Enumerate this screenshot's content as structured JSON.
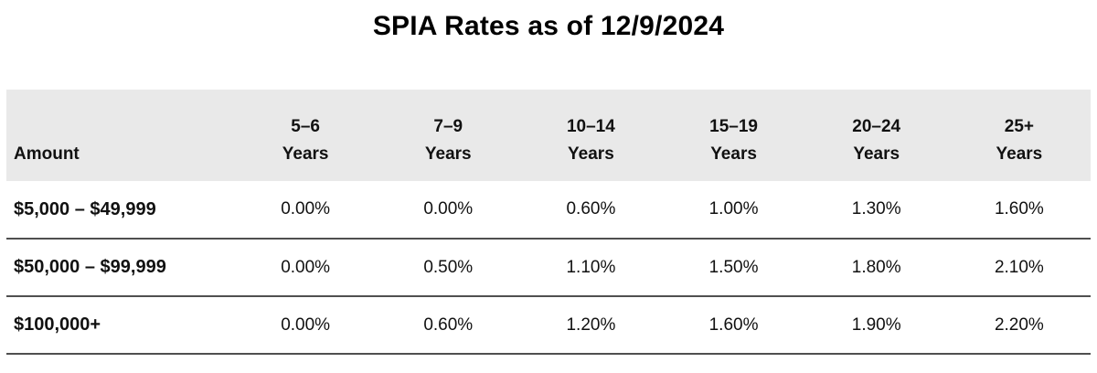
{
  "title": "SPIA Rates as of 12/9/2024",
  "colors": {
    "header_bg": "#e9e9e9",
    "row_rule": "#4f4f4f",
    "text": "#111111",
    "title_text": "#000000"
  },
  "table": {
    "amount_header": "Amount",
    "columns": [
      {
        "range": "5–6",
        "suffix": "Years"
      },
      {
        "range": "7–9",
        "suffix": "Years"
      },
      {
        "range": "10–14",
        "suffix": "Years"
      },
      {
        "range": "15–19",
        "suffix": "Years"
      },
      {
        "range": "20–24",
        "suffix": "Years"
      },
      {
        "range": "25+",
        "suffix": "Years"
      }
    ],
    "rows": [
      {
        "amount": "$5,000 – $49,999",
        "rates": [
          "0.00%",
          "0.00%",
          "0.60%",
          "1.00%",
          "1.30%",
          "1.60%"
        ]
      },
      {
        "amount": "$50,000 – $99,999",
        "rates": [
          "0.00%",
          "0.50%",
          "1.10%",
          "1.50%",
          "1.80%",
          "2.10%"
        ]
      },
      {
        "amount": "$100,000+",
        "rates": [
          "0.00%",
          "0.60%",
          "1.20%",
          "1.60%",
          "1.90%",
          "2.20%"
        ]
      }
    ]
  },
  "chart_data": {
    "type": "table",
    "title": "SPIA Rates as of 12/9/2024",
    "columns": [
      "Amount",
      "5–6 Years",
      "7–9 Years",
      "10–14 Years",
      "15–19 Years",
      "20–24 Years",
      "25+ Years"
    ],
    "rows": [
      [
        "$5,000 – $49,999",
        "0.00%",
        "0.00%",
        "0.60%",
        "1.00%",
        "1.30%",
        "1.60%"
      ],
      [
        "$50,000 – $99,999",
        "0.00%",
        "0.50%",
        "1.10%",
        "1.50%",
        "1.80%",
        "2.10%"
      ],
      [
        "$100,000+",
        "0.00%",
        "0.60%",
        "1.20%",
        "1.60%",
        "1.90%",
        "2.20%"
      ]
    ]
  }
}
